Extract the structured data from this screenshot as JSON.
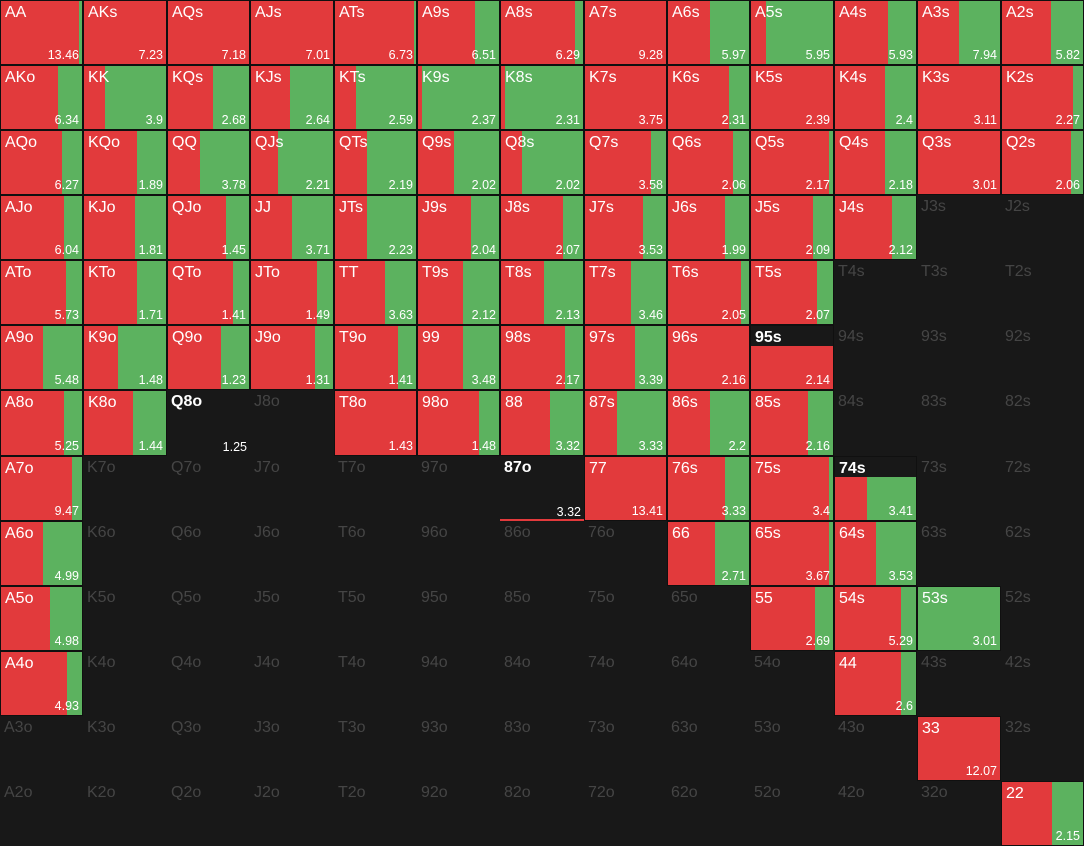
{
  "colors": {
    "raise": "#e23a3c",
    "call": "#5cb25f",
    "background": "#181818",
    "empty_label": "#454545"
  },
  "cells": [
    {
      "hand": "AA",
      "value": "13.46",
      "red": 0.96,
      "mode": "bar"
    },
    {
      "hand": "AKs",
      "value": "7.23",
      "red": 1.0,
      "mode": "bar"
    },
    {
      "hand": "AQs",
      "value": "7.18",
      "red": 1.0,
      "mode": "bar"
    },
    {
      "hand": "AJs",
      "value": "7.01",
      "red": 1.0,
      "mode": "bar"
    },
    {
      "hand": "ATs",
      "value": "6.73",
      "red": 0.98,
      "mode": "bar"
    },
    {
      "hand": "A9s",
      "value": "6.51",
      "red": 0.7,
      "mode": "bar"
    },
    {
      "hand": "A8s",
      "value": "6.29",
      "red": 0.9,
      "mode": "bar"
    },
    {
      "hand": "A7s",
      "value": "9.28",
      "red": 1.0,
      "mode": "bar"
    },
    {
      "hand": "A6s",
      "value": "5.97",
      "red": 0.52,
      "mode": "bar"
    },
    {
      "hand": "A5s",
      "value": "5.95",
      "red": 0.18,
      "mode": "bar"
    },
    {
      "hand": "A4s",
      "value": "5.93",
      "red": 0.65,
      "mode": "bar"
    },
    {
      "hand": "A3s",
      "value": "7.94",
      "red": 0.5,
      "mode": "bar"
    },
    {
      "hand": "A2s",
      "value": "5.82",
      "red": 0.6,
      "mode": "bar"
    },
    {
      "hand": "AKo",
      "value": "6.34",
      "red": 0.7,
      "mode": "bar"
    },
    {
      "hand": "KK",
      "value": "3.9",
      "red": 0.26,
      "mode": "bar"
    },
    {
      "hand": "KQs",
      "value": "2.68",
      "red": 0.55,
      "mode": "bar"
    },
    {
      "hand": "KJs",
      "value": "2.64",
      "red": 0.48,
      "mode": "bar"
    },
    {
      "hand": "KTs",
      "value": "2.59",
      "red": 0.26,
      "mode": "bar"
    },
    {
      "hand": "K9s",
      "value": "2.37",
      "red": 0.05,
      "mode": "bar"
    },
    {
      "hand": "K8s",
      "value": "2.31",
      "red": 0.05,
      "mode": "bar"
    },
    {
      "hand": "K7s",
      "value": "3.75",
      "red": 1.0,
      "mode": "bar"
    },
    {
      "hand": "K6s",
      "value": "2.31",
      "red": 0.75,
      "mode": "bar"
    },
    {
      "hand": "K5s",
      "value": "2.39",
      "red": 1.0,
      "mode": "bar"
    },
    {
      "hand": "K4s",
      "value": "2.4",
      "red": 0.62,
      "mode": "bar"
    },
    {
      "hand": "K3s",
      "value": "3.11",
      "red": 1.0,
      "mode": "bar"
    },
    {
      "hand": "K2s",
      "value": "2.27",
      "red": 0.88,
      "mode": "bar"
    },
    {
      "hand": "AQo",
      "value": "6.27",
      "red": 0.75,
      "mode": "bar"
    },
    {
      "hand": "KQo",
      "value": "1.89",
      "red": 0.65,
      "mode": "bar"
    },
    {
      "hand": "QQ",
      "value": "3.78",
      "red": 0.4,
      "mode": "bar"
    },
    {
      "hand": "QJs",
      "value": "2.21",
      "red": 0.33,
      "mode": "bar"
    },
    {
      "hand": "QTs",
      "value": "2.19",
      "red": 0.4,
      "mode": "bar"
    },
    {
      "hand": "Q9s",
      "value": "2.02",
      "red": 0.45,
      "mode": "bar"
    },
    {
      "hand": "Q8s",
      "value": "2.02",
      "red": 0.25,
      "mode": "bar"
    },
    {
      "hand": "Q7s",
      "value": "3.58",
      "red": 0.82,
      "mode": "bar"
    },
    {
      "hand": "Q6s",
      "value": "2.06",
      "red": 0.8,
      "mode": "bar"
    },
    {
      "hand": "Q5s",
      "value": "2.17",
      "red": 0.95,
      "mode": "bar"
    },
    {
      "hand": "Q4s",
      "value": "2.18",
      "red": 0.62,
      "mode": "bar"
    },
    {
      "hand": "Q3s",
      "value": "3.01",
      "red": 1.0,
      "mode": "bar"
    },
    {
      "hand": "Q2s",
      "value": "2.06",
      "red": 0.85,
      "mode": "bar"
    },
    {
      "hand": "AJo",
      "value": "6.04",
      "red": 0.78,
      "mode": "bar"
    },
    {
      "hand": "KJo",
      "value": "1.81",
      "red": 0.62,
      "mode": "bar"
    },
    {
      "hand": "QJo",
      "value": "1.45",
      "red": 0.72,
      "mode": "bar"
    },
    {
      "hand": "JJ",
      "value": "3.71",
      "red": 0.5,
      "mode": "bar"
    },
    {
      "hand": "JTs",
      "value": "2.23",
      "red": 0.4,
      "mode": "bar"
    },
    {
      "hand": "J9s",
      "value": "2.04",
      "red": 0.65,
      "mode": "bar"
    },
    {
      "hand": "J8s",
      "value": "2.07",
      "red": 0.75,
      "mode": "bar"
    },
    {
      "hand": "J7s",
      "value": "3.53",
      "red": 0.72,
      "mode": "bar"
    },
    {
      "hand": "J6s",
      "value": "1.99",
      "red": 0.7,
      "mode": "bar"
    },
    {
      "hand": "J5s",
      "value": "2.09",
      "red": 0.75,
      "mode": "bar"
    },
    {
      "hand": "J4s",
      "value": "2.12",
      "red": 0.7,
      "mode": "bar"
    },
    {
      "hand": "J3s",
      "value": "",
      "red": 0,
      "mode": "empty"
    },
    {
      "hand": "J2s",
      "value": "",
      "red": 0,
      "mode": "empty"
    },
    {
      "hand": "ATo",
      "value": "5.73",
      "red": 0.8,
      "mode": "bar"
    },
    {
      "hand": "KTo",
      "value": "1.71",
      "red": 0.65,
      "mode": "bar"
    },
    {
      "hand": "QTo",
      "value": "1.41",
      "red": 0.8,
      "mode": "bar"
    },
    {
      "hand": "JTo",
      "value": "1.49",
      "red": 0.8,
      "mode": "bar"
    },
    {
      "hand": "TT",
      "value": "3.63",
      "red": 0.62,
      "mode": "bar"
    },
    {
      "hand": "T9s",
      "value": "2.12",
      "red": 0.55,
      "mode": "bar"
    },
    {
      "hand": "T8s",
      "value": "2.13",
      "red": 0.52,
      "mode": "bar"
    },
    {
      "hand": "T7s",
      "value": "3.46",
      "red": 0.57,
      "mode": "bar"
    },
    {
      "hand": "T6s",
      "value": "2.05",
      "red": 0.9,
      "mode": "bar"
    },
    {
      "hand": "T5s",
      "value": "2.07",
      "red": 0.8,
      "mode": "bar"
    },
    {
      "hand": "T4s",
      "value": "",
      "red": 0,
      "mode": "empty"
    },
    {
      "hand": "T3s",
      "value": "",
      "red": 0,
      "mode": "empty"
    },
    {
      "hand": "T2s",
      "value": "",
      "red": 0,
      "mode": "empty"
    },
    {
      "hand": "A9o",
      "value": "5.48",
      "red": 0.52,
      "mode": "bar"
    },
    {
      "hand": "K9o",
      "value": "1.48",
      "red": 0.42,
      "mode": "bar"
    },
    {
      "hand": "Q9o",
      "value": "1.23",
      "red": 0.65,
      "mode": "bar"
    },
    {
      "hand": "J9o",
      "value": "1.31",
      "red": 0.78,
      "mode": "bar"
    },
    {
      "hand": "T9o",
      "value": "1.41",
      "red": 0.78,
      "mode": "bar"
    },
    {
      "hand": "99",
      "value": "3.48",
      "red": 0.55,
      "mode": "bar"
    },
    {
      "hand": "98s",
      "value": "2.17",
      "red": 0.78,
      "mode": "bar"
    },
    {
      "hand": "97s",
      "value": "3.39",
      "red": 0.62,
      "mode": "bar"
    },
    {
      "hand": "96s",
      "value": "2.16",
      "red": 1.0,
      "mode": "bar"
    },
    {
      "hand": "95s",
      "value": "2.14",
      "red": 1.0,
      "mode": "split"
    },
    {
      "hand": "94s",
      "value": "",
      "red": 0,
      "mode": "empty"
    },
    {
      "hand": "93s",
      "value": "",
      "red": 0,
      "mode": "empty"
    },
    {
      "hand": "92s",
      "value": "",
      "red": 0,
      "mode": "empty"
    },
    {
      "hand": "A8o",
      "value": "5.25",
      "red": 0.78,
      "mode": "bar"
    },
    {
      "hand": "K8o",
      "value": "1.44",
      "red": 0.6,
      "mode": "bar"
    },
    {
      "hand": "Q8o",
      "value": "1.25",
      "red": 0,
      "mode": "dark"
    },
    {
      "hand": "J8o",
      "value": "",
      "red": 0,
      "mode": "empty"
    },
    {
      "hand": "T8o",
      "value": "1.43",
      "red": 1.0,
      "mode": "bar"
    },
    {
      "hand": "98o",
      "value": "1.48",
      "red": 0.75,
      "mode": "bar"
    },
    {
      "hand": "88",
      "value": "3.32",
      "red": 0.6,
      "mode": "bar"
    },
    {
      "hand": "87s",
      "value": "3.33",
      "red": 0.4,
      "mode": "bar"
    },
    {
      "hand": "86s",
      "value": "2.2",
      "red": 0.52,
      "mode": "bar"
    },
    {
      "hand": "85s",
      "value": "2.16",
      "red": 0.7,
      "mode": "bar"
    },
    {
      "hand": "84s",
      "value": "",
      "red": 0,
      "mode": "empty"
    },
    {
      "hand": "83s",
      "value": "",
      "red": 0,
      "mode": "empty"
    },
    {
      "hand": "82s",
      "value": "",
      "red": 0,
      "mode": "empty"
    },
    {
      "hand": "A7o",
      "value": "9.47",
      "red": 0.88,
      "mode": "bar"
    },
    {
      "hand": "K7o",
      "value": "",
      "red": 0,
      "mode": "empty"
    },
    {
      "hand": "Q7o",
      "value": "",
      "red": 0,
      "mode": "empty"
    },
    {
      "hand": "J7o",
      "value": "",
      "red": 0,
      "mode": "empty"
    },
    {
      "hand": "T7o",
      "value": "",
      "red": 0,
      "mode": "empty"
    },
    {
      "hand": "97o",
      "value": "",
      "red": 0,
      "mode": "empty"
    },
    {
      "hand": "87o",
      "value": "3.32",
      "red": 0,
      "mode": "dark-underline"
    },
    {
      "hand": "77",
      "value": "13.41",
      "red": 1.0,
      "mode": "bar"
    },
    {
      "hand": "76s",
      "value": "3.33",
      "red": 0.7,
      "mode": "bar"
    },
    {
      "hand": "75s",
      "value": "3.4",
      "red": 0.95,
      "mode": "bar"
    },
    {
      "hand": "74s",
      "value": "3.41",
      "red": 0.4,
      "mode": "split"
    },
    {
      "hand": "73s",
      "value": "",
      "red": 0,
      "mode": "empty"
    },
    {
      "hand": "72s",
      "value": "",
      "red": 0,
      "mode": "empty"
    },
    {
      "hand": "A6o",
      "value": "4.99",
      "red": 0.52,
      "mode": "bar"
    },
    {
      "hand": "K6o",
      "value": "",
      "red": 0,
      "mode": "empty"
    },
    {
      "hand": "Q6o",
      "value": "",
      "red": 0,
      "mode": "empty"
    },
    {
      "hand": "J6o",
      "value": "",
      "red": 0,
      "mode": "empty"
    },
    {
      "hand": "T6o",
      "value": "",
      "red": 0,
      "mode": "empty"
    },
    {
      "hand": "96o",
      "value": "",
      "red": 0,
      "mode": "empty"
    },
    {
      "hand": "86o",
      "value": "",
      "red": 0,
      "mode": "empty"
    },
    {
      "hand": "76o",
      "value": "",
      "red": 0,
      "mode": "empty"
    },
    {
      "hand": "66",
      "value": "2.71",
      "red": 0.58,
      "mode": "bar"
    },
    {
      "hand": "65s",
      "value": "3.67",
      "red": 0.95,
      "mode": "bar"
    },
    {
      "hand": "64s",
      "value": "3.53",
      "red": 0.5,
      "mode": "bar"
    },
    {
      "hand": "63s",
      "value": "",
      "red": 0,
      "mode": "empty"
    },
    {
      "hand": "62s",
      "value": "",
      "red": 0,
      "mode": "empty"
    },
    {
      "hand": "A5o",
      "value": "4.98",
      "red": 0.6,
      "mode": "bar"
    },
    {
      "hand": "K5o",
      "value": "",
      "red": 0,
      "mode": "empty"
    },
    {
      "hand": "Q5o",
      "value": "",
      "red": 0,
      "mode": "empty"
    },
    {
      "hand": "J5o",
      "value": "",
      "red": 0,
      "mode": "empty"
    },
    {
      "hand": "T5o",
      "value": "",
      "red": 0,
      "mode": "empty"
    },
    {
      "hand": "95o",
      "value": "",
      "red": 0,
      "mode": "empty"
    },
    {
      "hand": "85o",
      "value": "",
      "red": 0,
      "mode": "empty"
    },
    {
      "hand": "75o",
      "value": "",
      "red": 0,
      "mode": "empty"
    },
    {
      "hand": "65o",
      "value": "",
      "red": 0,
      "mode": "empty"
    },
    {
      "hand": "55",
      "value": "2.69",
      "red": 0.78,
      "mode": "bar"
    },
    {
      "hand": "54s",
      "value": "5.29",
      "red": 0.82,
      "mode": "bar"
    },
    {
      "hand": "53s",
      "value": "3.01",
      "red": 0.0,
      "mode": "bar"
    },
    {
      "hand": "52s",
      "value": "",
      "red": 0,
      "mode": "empty"
    },
    {
      "hand": "A4o",
      "value": "4.93",
      "red": 0.82,
      "mode": "bar"
    },
    {
      "hand": "K4o",
      "value": "",
      "red": 0,
      "mode": "empty"
    },
    {
      "hand": "Q4o",
      "value": "",
      "red": 0,
      "mode": "empty"
    },
    {
      "hand": "J4o",
      "value": "",
      "red": 0,
      "mode": "empty"
    },
    {
      "hand": "T4o",
      "value": "",
      "red": 0,
      "mode": "empty"
    },
    {
      "hand": "94o",
      "value": "",
      "red": 0,
      "mode": "empty"
    },
    {
      "hand": "84o",
      "value": "",
      "red": 0,
      "mode": "empty"
    },
    {
      "hand": "74o",
      "value": "",
      "red": 0,
      "mode": "empty"
    },
    {
      "hand": "64o",
      "value": "",
      "red": 0,
      "mode": "empty"
    },
    {
      "hand": "54o",
      "value": "",
      "red": 0,
      "mode": "empty"
    },
    {
      "hand": "44",
      "value": "2.6",
      "red": 0.82,
      "mode": "bar"
    },
    {
      "hand": "43s",
      "value": "",
      "red": 0,
      "mode": "empty"
    },
    {
      "hand": "42s",
      "value": "",
      "red": 0,
      "mode": "empty"
    },
    {
      "hand": "A3o",
      "value": "",
      "red": 0,
      "mode": "empty"
    },
    {
      "hand": "K3o",
      "value": "",
      "red": 0,
      "mode": "empty"
    },
    {
      "hand": "Q3o",
      "value": "",
      "red": 0,
      "mode": "empty"
    },
    {
      "hand": "J3o",
      "value": "",
      "red": 0,
      "mode": "empty"
    },
    {
      "hand": "T3o",
      "value": "",
      "red": 0,
      "mode": "empty"
    },
    {
      "hand": "93o",
      "value": "",
      "red": 0,
      "mode": "empty"
    },
    {
      "hand": "83o",
      "value": "",
      "red": 0,
      "mode": "empty"
    },
    {
      "hand": "73o",
      "value": "",
      "red": 0,
      "mode": "empty"
    },
    {
      "hand": "63o",
      "value": "",
      "red": 0,
      "mode": "empty"
    },
    {
      "hand": "53o",
      "value": "",
      "red": 0,
      "mode": "empty"
    },
    {
      "hand": "43o",
      "value": "",
      "red": 0,
      "mode": "empty"
    },
    {
      "hand": "33",
      "value": "12.07",
      "red": 1.0,
      "mode": "bar"
    },
    {
      "hand": "32s",
      "value": "",
      "red": 0,
      "mode": "empty"
    },
    {
      "hand": "A2o",
      "value": "",
      "red": 0,
      "mode": "empty"
    },
    {
      "hand": "K2o",
      "value": "",
      "red": 0,
      "mode": "empty"
    },
    {
      "hand": "Q2o",
      "value": "",
      "red": 0,
      "mode": "empty"
    },
    {
      "hand": "J2o",
      "value": "",
      "red": 0,
      "mode": "empty"
    },
    {
      "hand": "T2o",
      "value": "",
      "red": 0,
      "mode": "empty"
    },
    {
      "hand": "92o",
      "value": "",
      "red": 0,
      "mode": "empty"
    },
    {
      "hand": "82o",
      "value": "",
      "red": 0,
      "mode": "empty"
    },
    {
      "hand": "72o",
      "value": "",
      "red": 0,
      "mode": "empty"
    },
    {
      "hand": "62o",
      "value": "",
      "red": 0,
      "mode": "empty"
    },
    {
      "hand": "52o",
      "value": "",
      "red": 0,
      "mode": "empty"
    },
    {
      "hand": "42o",
      "value": "",
      "red": 0,
      "mode": "empty"
    },
    {
      "hand": "32o",
      "value": "",
      "red": 0,
      "mode": "empty"
    },
    {
      "hand": "22",
      "value": "2.15",
      "red": 0.62,
      "mode": "bar"
    }
  ]
}
